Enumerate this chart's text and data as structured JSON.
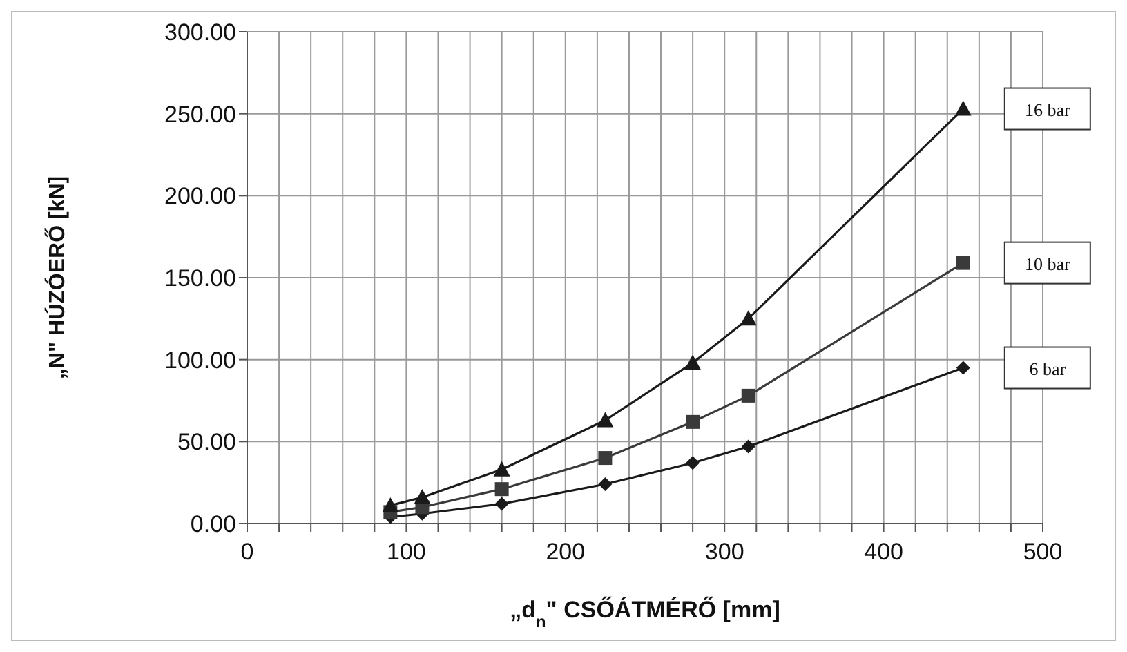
{
  "chart_data": {
    "type": "line",
    "xlabel": "„d$_{n}$\" CSŐÁTMÉRŐ [mm]",
    "ylabel": "„N\" HÚZÓERŐ [kN]",
    "x": [
      90,
      110,
      160,
      225,
      280,
      315,
      450
    ],
    "series": [
      {
        "name": "16 bar",
        "color": "#1a1a1a",
        "marker": "triangle",
        "values": [
          11,
          16,
          33,
          63,
          98,
          125,
          253
        ]
      },
      {
        "name": "10 bar",
        "color": "#3a3a3a",
        "marker": "square",
        "values": [
          7,
          10,
          21,
          40,
          62,
          78,
          159
        ]
      },
      {
        "name": "6 bar",
        "color": "#1a1a1a",
        "marker": "diamond",
        "values": [
          4,
          6,
          12,
          24,
          37,
          47,
          95
        ]
      }
    ],
    "xlim": [
      0,
      500
    ],
    "xticks": [
      0,
      {
        "value": 20,
        "label": null
      },
      {
        "value": 40,
        "label": null
      },
      {
        "value": 60,
        "label": null
      },
      {
        "value": 80,
        "label": null
      },
      100,
      {
        "value": 120,
        "label": null
      },
      {
        "value": 140,
        "label": null
      },
      {
        "value": 160,
        "label": null
      },
      {
        "value": 180,
        "label": null
      },
      200,
      {
        "value": 220,
        "label": null
      },
      {
        "value": 240,
        "label": null
      },
      {
        "value": 260,
        "label": null
      },
      {
        "value": 280,
        "label": null
      },
      300,
      {
        "value": 320,
        "label": null
      },
      {
        "value": 340,
        "label": null
      },
      {
        "value": 360,
        "label": null
      },
      {
        "value": 380,
        "label": null
      },
      400,
      {
        "value": 420,
        "label": null
      },
      {
        "value": 440,
        "label": null
      },
      {
        "value": 460,
        "label": null
      },
      {
        "value": 480,
        "label": null
      },
      500
    ],
    "ylim": [
      0,
      300
    ],
    "yticks": [
      {
        "value": 0,
        "label": "0.00"
      },
      {
        "value": 50,
        "label": "50.00"
      },
      {
        "value": 100,
        "label": "100.00"
      },
      {
        "value": 150,
        "label": "150.00"
      },
      {
        "value": 200,
        "label": "200.00"
      },
      {
        "value": 250,
        "label": "250.00"
      },
      {
        "value": 300,
        "label": "300.00"
      }
    ],
    "grid": true,
    "legend": false,
    "line_style": "solid"
  }
}
